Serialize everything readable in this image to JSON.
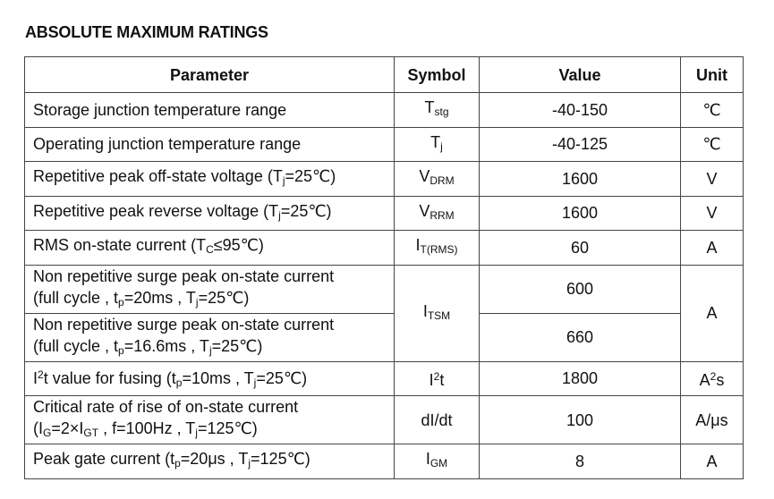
{
  "title": "ABSOLUTE MAXIMUM RATINGS",
  "table": {
    "headers": [
      "Parameter",
      "Symbol",
      "Value",
      "Unit"
    ],
    "rows": [
      {
        "parameter": [
          [
            "Storage junction temperature range"
          ]
        ],
        "symbol": [
          "T",
          {
            "sub": "stg"
          }
        ],
        "value": "-40-150",
        "unit": [
          "℃"
        ]
      },
      {
        "parameter": [
          [
            "Operating junction temperature range"
          ]
        ],
        "symbol": [
          "T",
          {
            "sub": "j"
          }
        ],
        "value": "-40-125",
        "unit": [
          "℃"
        ]
      },
      {
        "parameter": [
          [
            "Repetitive peak off-state voltage (T",
            {
              "sub": "j"
            },
            "=25℃)"
          ]
        ],
        "symbol": [
          "V",
          {
            "sub": "DRM"
          }
        ],
        "value": 1600,
        "unit": [
          "V"
        ]
      },
      {
        "parameter": [
          [
            "Repetitive peak reverse voltage (T",
            {
              "sub": "j"
            },
            "=25℃)"
          ]
        ],
        "symbol": [
          "V",
          {
            "sub": "RRM"
          }
        ],
        "value": 1600,
        "unit": [
          "V"
        ]
      },
      {
        "parameter": [
          [
            "RMS on-state current (T",
            {
              "sub": "C"
            },
            "≤95℃)"
          ]
        ],
        "symbol": [
          "I",
          {
            "sub": "T(RMS)"
          }
        ],
        "value": 60,
        "unit": [
          "A"
        ]
      },
      {
        "sub_rows": [
          {
            "parameter": [
              [
                "Non repetitive surge peak on-state current"
              ],
              [
                "(full cycle , t",
                {
                  "sub": "p"
                },
                "=20ms , T",
                {
                  "sub": "j"
                },
                "=25℃)"
              ]
            ],
            "value": 600
          },
          {
            "parameter": [
              [
                "Non repetitive surge peak on-state current"
              ],
              [
                "(full cycle , t",
                {
                  "sub": "p"
                },
                "=16.6ms , T",
                {
                  "sub": "j"
                },
                "=25℃)"
              ]
            ],
            "value": 660
          }
        ],
        "symbol": [
          "I",
          {
            "sub": "TSM"
          }
        ],
        "unit": [
          "A"
        ]
      },
      {
        "parameter": [
          [
            "I",
            {
              "sup": "2"
            },
            "t value for fusing (t",
            {
              "sub": "p"
            },
            "=10ms , T",
            {
              "sub": "j"
            },
            "=25℃)"
          ]
        ],
        "symbol": [
          "I",
          {
            "sup": "2"
          },
          "t"
        ],
        "value": 1800,
        "unit": [
          "A",
          {
            "sup": "2"
          },
          "s"
        ]
      },
      {
        "parameter": [
          [
            "Critical rate of rise of on-state current"
          ],
          [
            "(I",
            {
              "sub": "G"
            },
            "=2×I",
            {
              "sub": "GT"
            },
            " , f=100Hz , T",
            {
              "sub": "j"
            },
            "=125℃)"
          ]
        ],
        "symbol": [
          "dI/dt"
        ],
        "value": 100,
        "unit": [
          "A/μs"
        ]
      },
      {
        "parameter": [
          [
            "Peak gate current (t",
            {
              "sub": "p"
            },
            "=20μs , T",
            {
              "sub": "j"
            },
            "=125℃)"
          ]
        ],
        "symbol": [
          "I",
          {
            "sub": "GM"
          }
        ],
        "value": 8,
        "unit": [
          "A"
        ]
      }
    ]
  }
}
